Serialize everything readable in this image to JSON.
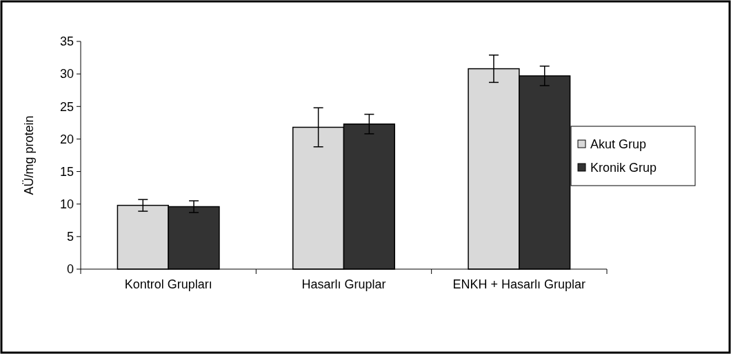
{
  "chart_data": {
    "type": "bar",
    "ylabel": "AÜ/mg protein",
    "categories": [
      "Kontrol Grupları",
      "Hasarlı Gruplar",
      "ENKH + Hasarlı Gruplar"
    ],
    "series": [
      {
        "name": "Akut Grup",
        "color": "#d9d9d9",
        "values": [
          9.8,
          21.8,
          30.8
        ],
        "errors": [
          0.9,
          3,
          2.1
        ]
      },
      {
        "name": "Kronik Grup",
        "color": "#333333",
        "values": [
          9.6,
          22.3,
          29.7
        ],
        "errors": [
          0.9,
          1.5,
          1.5
        ]
      }
    ],
    "ylim": [
      0,
      35
    ],
    "yticks": [
      0,
      5,
      10,
      15,
      20,
      25,
      30,
      35
    ],
    "legend": "right",
    "grid": false
  }
}
